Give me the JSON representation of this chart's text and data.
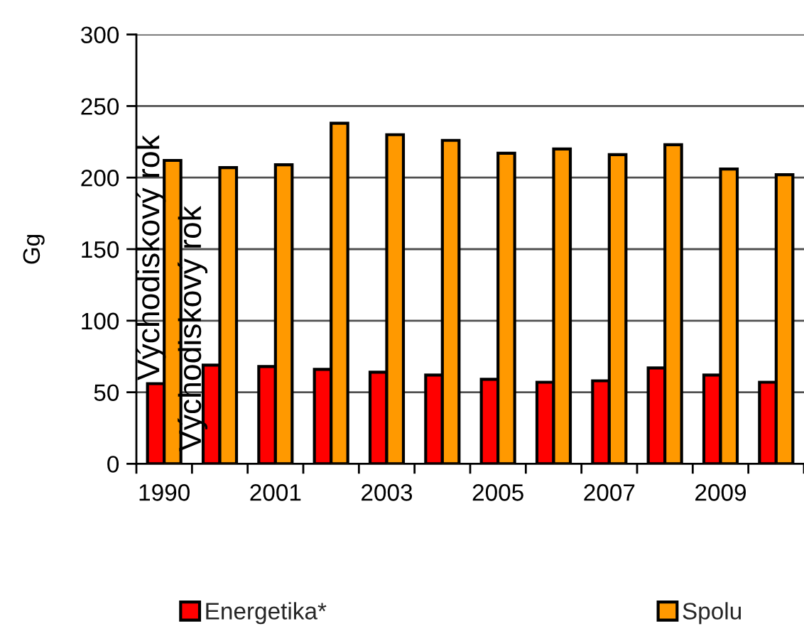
{
  "chart_data": {
    "type": "bar",
    "ylabel": "Gg",
    "categories": [
      "1990",
      null,
      "2001",
      null,
      "2003",
      null,
      "2005",
      null,
      "2007",
      null,
      "2009",
      null
    ],
    "series": [
      {
        "name": "Energetika*",
        "color": "#ff0000",
        "values": [
          56,
          69,
          68,
          66,
          64,
          62,
          59,
          57,
          58,
          67,
          62,
          57
        ]
      },
      {
        "name": "Spolu",
        "color": "#ff9900",
        "values": [
          212,
          207,
          209,
          238,
          230,
          226,
          217,
          220,
          216,
          223,
          206,
          202
        ]
      }
    ],
    "ylim": [
      0,
      300
    ],
    "yticks": [
      0,
      50,
      100,
      150,
      200,
      250,
      300
    ],
    "grid": "y",
    "legend": "bottom",
    "annotations": [
      "Východiskový rok",
      "Východiskový rok"
    ]
  }
}
